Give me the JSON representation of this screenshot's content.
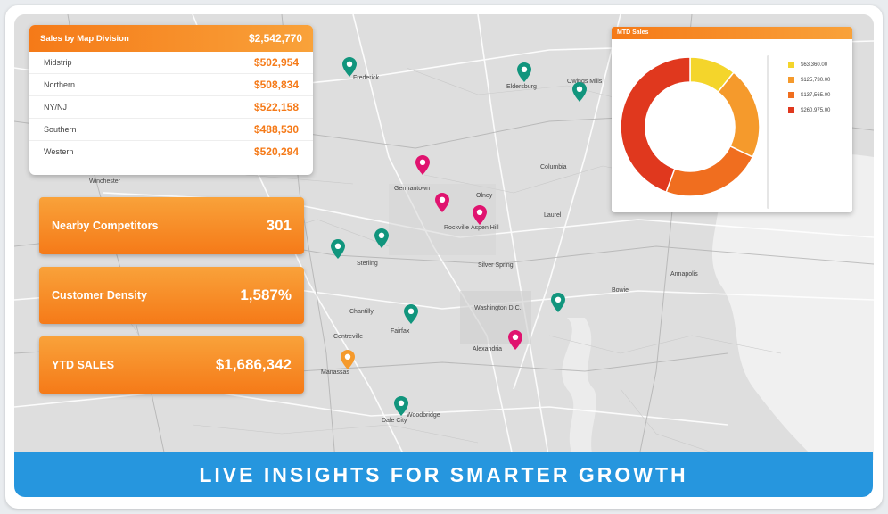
{
  "sales_by_division": {
    "title": "Sales by Map Division",
    "total": "$2,542,770",
    "rows": [
      {
        "name": "Midstrip",
        "value": "$502,954"
      },
      {
        "name": "Northern",
        "value": "$508,834"
      },
      {
        "name": "NY/NJ",
        "value": "$522,158"
      },
      {
        "name": "Southern",
        "value": "$488,530"
      },
      {
        "name": "Western",
        "value": "$520,294"
      }
    ]
  },
  "metrics": [
    {
      "label": "Nearby Competitors",
      "value": "301"
    },
    {
      "label": "Customer Density",
      "value": "1,587%"
    },
    {
      "label": "YTD SALES",
      "value": "$1,686,342"
    }
  ],
  "mtd_sales": {
    "title": "MTD Sales",
    "legend": [
      {
        "label": "$63,360.00",
        "color": "#f4d52b"
      },
      {
        "label": "$125,730.00",
        "color": "#f59a2c"
      },
      {
        "label": "$137,565.00",
        "color": "#f06e1f"
      },
      {
        "label": "$260,975.00",
        "color": "#e0381e"
      }
    ]
  },
  "chart_data": {
    "type": "pie",
    "title": "MTD Sales",
    "labels": [
      "$63,360.00",
      "$125,730.00",
      "$137,565.00",
      "$260,975.00"
    ],
    "values": [
      63360,
      125730,
      137565,
      260975
    ],
    "colors": [
      "#f4d52b",
      "#f59a2c",
      "#f06e1f",
      "#e0381e"
    ],
    "legend_position": "right"
  },
  "map": {
    "labels": [
      {
        "text": "Frederick"
      },
      {
        "text": "Eldersburg"
      },
      {
        "text": "Owings Mills"
      },
      {
        "text": "Germantown"
      },
      {
        "text": "Columbia"
      },
      {
        "text": "Olney"
      },
      {
        "text": "Laurel"
      },
      {
        "text": "Rockville"
      },
      {
        "text": "Aspen Hill"
      },
      {
        "text": "Silver Spring"
      },
      {
        "text": "Bowie"
      },
      {
        "text": "Annapolis"
      },
      {
        "text": "Washington D.C."
      },
      {
        "text": "Fairfax"
      },
      {
        "text": "Alexandria"
      },
      {
        "text": "Manassas"
      },
      {
        "text": "Woodbridge"
      },
      {
        "text": "Sterling"
      },
      {
        "text": "Winchester"
      },
      {
        "text": "Chantilly"
      },
      {
        "text": "Centreville"
      },
      {
        "text": "Dale City"
      }
    ],
    "pins": [
      {
        "kind": "teal",
        "color": "#11957d"
      },
      {
        "kind": "teal",
        "color": "#11957d"
      },
      {
        "kind": "teal",
        "color": "#11957d"
      },
      {
        "kind": "magenta",
        "color": "#e0136f"
      },
      {
        "kind": "magenta",
        "color": "#e0136f"
      },
      {
        "kind": "magenta",
        "color": "#e0136f"
      },
      {
        "kind": "teal",
        "color": "#11957d"
      },
      {
        "kind": "teal",
        "color": "#11957d"
      },
      {
        "kind": "teal",
        "color": "#11957d"
      },
      {
        "kind": "teal",
        "color": "#11957d"
      },
      {
        "kind": "magenta",
        "color": "#e0136f"
      },
      {
        "kind": "orange",
        "color": "#f59a2c"
      },
      {
        "kind": "teal",
        "color": "#11957d"
      }
    ]
  },
  "banner": {
    "text": "LIVE INSIGHTS FOR SMARTER GROWTH"
  }
}
